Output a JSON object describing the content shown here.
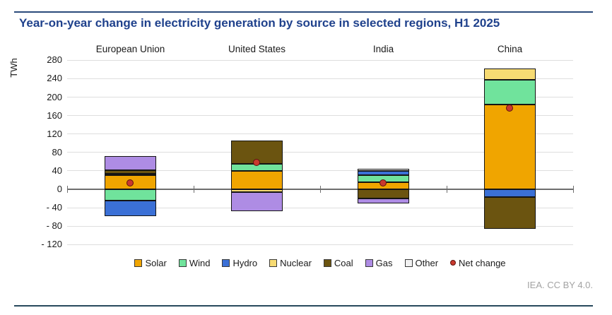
{
  "title": "Year-on-year change in electricity generation by source in selected regions, H1 2025",
  "attribution": "IEA. CC BY 4.0.",
  "chart_data": {
    "type": "bar",
    "stacked": true,
    "title": "Year-on-year change in electricity generation by source in selected regions, H1 2025",
    "ylabel": "TWh",
    "unit": "TWh",
    "ylim": [
      -120,
      280
    ],
    "ytick_step": 40,
    "grid": true,
    "legend_position": "bottom",
    "categories": [
      "European Union",
      "United States",
      "India",
      "China"
    ],
    "series": [
      {
        "name": "Solar",
        "color": "#f0a500",
        "values": [
          30,
          40,
          16,
          184
        ]
      },
      {
        "name": "Wind",
        "color": "#70e39c",
        "values": [
          -24,
          15,
          14,
          54
        ]
      },
      {
        "name": "Hydro",
        "color": "#3b70d6",
        "values": [
          -35,
          0,
          10,
          -17
        ]
      },
      {
        "name": "Nuclear",
        "color": "#f7db73",
        "values": [
          3,
          -6,
          0,
          24
        ]
      },
      {
        "name": "Coal",
        "color": "#6b5410",
        "values": [
          8,
          50,
          -20,
          -69
        ]
      },
      {
        "name": "Gas",
        "color": "#ae8ce4",
        "values": [
          31,
          -41,
          -11,
          0
        ]
      },
      {
        "name": "Other",
        "color": "#f2f2f2",
        "values": [
          0,
          0,
          4,
          0
        ]
      }
    ],
    "net_change": {
      "name": "Net change",
      "color": "#c9392e",
      "values": [
        13,
        58,
        13,
        176
      ]
    },
    "legend": [
      "Solar",
      "Wind",
      "Hydro",
      "Nuclear",
      "Coal",
      "Gas",
      "Other",
      "Net change"
    ],
    "colors": {
      "axis": "#6e6e6e",
      "grid": "#dedede",
      "bar_border": "#141414",
      "title": "#1f418c",
      "net_change_fill": "#c9392e",
      "net_change_border": "#5c1310"
    }
  }
}
